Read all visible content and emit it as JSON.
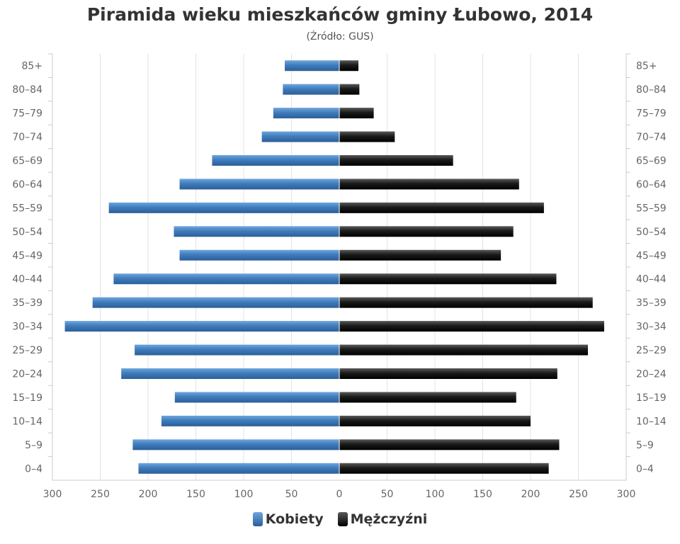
{
  "chart_data": {
    "type": "bar",
    "orientation": "horizontal-pyramid",
    "title": "Piramida wieku mieszkańców gminy Łubowo, 2014",
    "subtitle": "(Źródło: GUS)",
    "categories": [
      "0–4",
      "5–9",
      "10–14",
      "15–19",
      "20–24",
      "25–29",
      "30–34",
      "35–39",
      "40–44",
      "45–49",
      "50–54",
      "55–59",
      "60–64",
      "65–69",
      "70–74",
      "75–79",
      "80–84",
      "85+"
    ],
    "series": [
      {
        "name": "Kobiety",
        "color": "#4a86c5",
        "values": [
          210,
          216,
          186,
          172,
          228,
          214,
          287,
          258,
          236,
          167,
          173,
          241,
          167,
          133,
          81,
          69,
          59,
          57
        ]
      },
      {
        "name": "Mężczyźni",
        "color": "#222222",
        "values": [
          219,
          230,
          200,
          185,
          228,
          260,
          277,
          265,
          227,
          169,
          182,
          214,
          188,
          119,
          58,
          36,
          21,
          20
        ]
      }
    ],
    "xlim": [
      -300,
      300
    ],
    "xticks": [
      "300",
      "250",
      "200",
      "150",
      "100",
      "50",
      "0",
      "50",
      "100",
      "150",
      "200",
      "250",
      "300"
    ],
    "grid": true,
    "legend_position": "bottom-center"
  }
}
